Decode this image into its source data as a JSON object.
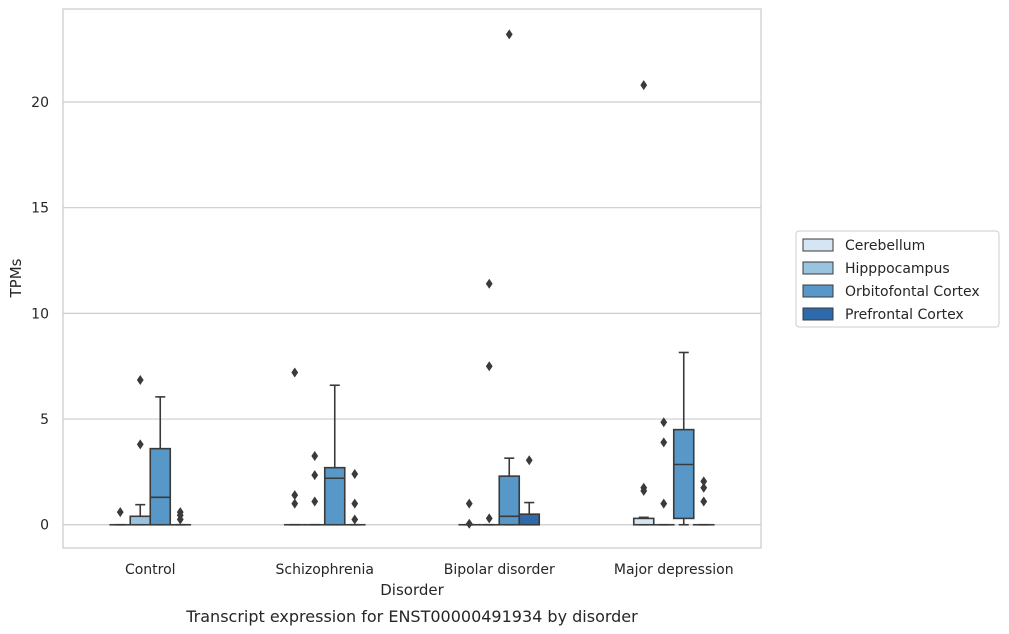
{
  "chart_data": {
    "type": "box",
    "title": "",
    "caption": "Transcript expression for ENST00000491934 by disorder",
    "xlabel": "Disorder",
    "ylabel": "TPMs",
    "ylim": [
      -1.1,
      24.4
    ],
    "yticks": [
      0,
      5,
      10,
      15,
      20
    ],
    "grid": "horizontal",
    "legend_position": "right",
    "categories": [
      "Control",
      "Schizophrenia",
      "Bipolar disorder",
      "Major depression"
    ],
    "series": [
      {
        "name": "Cerebellum",
        "color": "#d6e5f3",
        "boxes": [
          {
            "q1": 0,
            "median": 0,
            "q3": 0,
            "whisker_low": 0,
            "whisker_high": 0,
            "outliers": [
              0.6
            ]
          },
          {
            "q1": 0,
            "median": 0,
            "q3": 0,
            "whisker_low": 0,
            "whisker_high": 0,
            "outliers": [
              1.0,
              1.4,
              7.2
            ]
          },
          {
            "q1": 0,
            "median": 0,
            "q3": 0,
            "whisker_low": 0,
            "whisker_high": 0,
            "outliers": [
              0.05,
              1.0
            ]
          },
          {
            "q1": 0,
            "median": 0,
            "q3": 0.3,
            "whisker_low": 0,
            "whisker_high": 0.35,
            "outliers": [
              1.6,
              1.75,
              20.8
            ]
          }
        ]
      },
      {
        "name": "Hipppocampus",
        "color": "#9ac3df",
        "boxes": [
          {
            "q1": 0,
            "median": 0,
            "q3": 0.4,
            "whisker_low": 0,
            "whisker_high": 0.95,
            "outliers": [
              3.8,
              6.85
            ]
          },
          {
            "q1": 0,
            "median": 0,
            "q3": 0,
            "whisker_low": 0,
            "whisker_high": 0,
            "outliers": [
              1.1,
              2.35,
              3.25
            ]
          },
          {
            "q1": 0,
            "median": 0,
            "q3": 0,
            "whisker_low": 0,
            "whisker_high": 0,
            "outliers": [
              0.3,
              7.5,
              11.4
            ]
          },
          {
            "q1": 0,
            "median": 0,
            "q3": 0,
            "whisker_low": 0,
            "whisker_high": 0,
            "outliers": [
              1.0,
              3.9,
              4.85
            ]
          }
        ]
      },
      {
        "name": "Orbitofontal Cortex",
        "color": "#5798c8",
        "boxes": [
          {
            "q1": 0,
            "median": 1.3,
            "q3": 3.6,
            "whisker_low": 0,
            "whisker_high": 6.05,
            "outliers": []
          },
          {
            "q1": 0,
            "median": 2.2,
            "q3": 2.7,
            "whisker_low": 0,
            "whisker_high": 6.6,
            "outliers": []
          },
          {
            "q1": 0,
            "median": 0.4,
            "q3": 2.3,
            "whisker_low": 0,
            "whisker_high": 3.15,
            "outliers": [
              23.2
            ]
          },
          {
            "q1": 0.3,
            "median": 2.85,
            "q3": 4.5,
            "whisker_low": 0,
            "whisker_high": 8.15,
            "outliers": []
          }
        ]
      },
      {
        "name": "Prefrontal Cortex",
        "color": "#2e6aaa",
        "boxes": [
          {
            "q1": 0,
            "median": 0,
            "q3": 0,
            "whisker_low": 0,
            "whisker_high": 0,
            "outliers": [
              0.25,
              0.45,
              0.6
            ]
          },
          {
            "q1": 0,
            "median": 0,
            "q3": 0,
            "whisker_low": 0,
            "whisker_high": 0,
            "outliers": [
              0.25,
              1.0,
              2.4
            ]
          },
          {
            "q1": 0,
            "median": 0,
            "q3": 0.5,
            "whisker_low": 0,
            "whisker_high": 1.05,
            "outliers": [
              3.05
            ]
          },
          {
            "q1": 0,
            "median": 0,
            "q3": 0,
            "whisker_low": 0,
            "whisker_high": 0,
            "outliers": [
              1.1,
              1.75,
              2.05
            ]
          }
        ]
      }
    ]
  }
}
